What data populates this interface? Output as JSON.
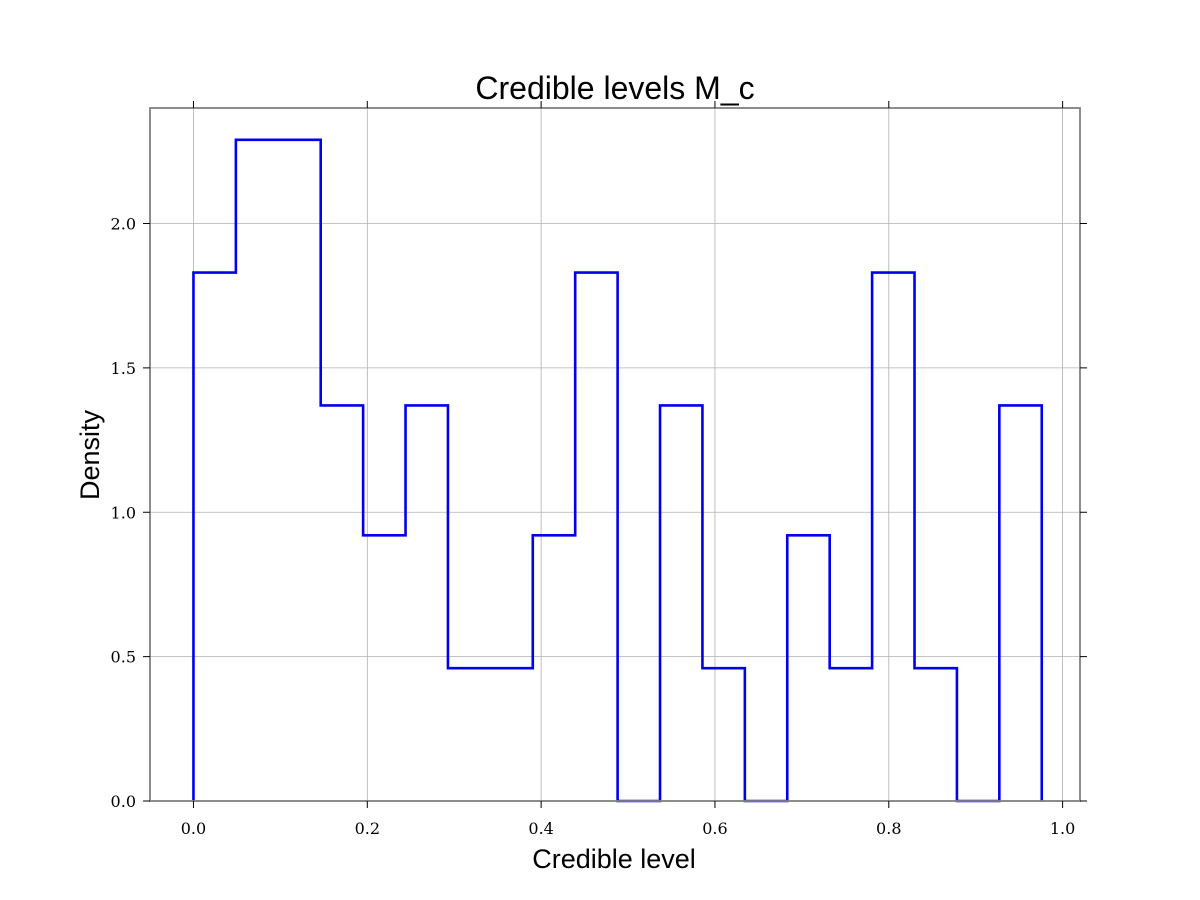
{
  "chart_data": {
    "type": "histogram",
    "title": "Credible levels M_c",
    "xlabel": "Credible level",
    "ylabel": "Density",
    "xlim": [
      -0.05,
      1.02
    ],
    "ylim": [
      0,
      2.4
    ],
    "grid": true,
    "histtype": "step",
    "bin_edges": [
      0.0,
      0.0488,
      0.0976,
      0.1464,
      0.1952,
      0.244,
      0.2928,
      0.3416,
      0.3904,
      0.4392,
      0.488,
      0.5368,
      0.5856,
      0.6344,
      0.6832,
      0.732,
      0.7808,
      0.8296,
      0.8784,
      0.9272,
      0.976
    ],
    "values": [
      1.83,
      2.29,
      2.29,
      1.37,
      0.92,
      1.37,
      0.46,
      0.46,
      0.92,
      1.83,
      0.0,
      1.37,
      0.46,
      0.0,
      0.92,
      0.46,
      1.83,
      0.46,
      0.0,
      1.37
    ],
    "series_color": "#0000ee",
    "x_ticks": [
      0.0,
      0.2,
      0.4,
      0.6,
      0.8,
      1.0
    ],
    "x_tick_labels": [
      "0.0",
      "0.2",
      "0.4",
      "0.6",
      "0.8",
      "1.0"
    ],
    "y_ticks": [
      0.0,
      0.5,
      1.0,
      1.5,
      2.0
    ],
    "y_tick_labels": [
      "0.0",
      "0.5",
      "1.0",
      "1.5",
      "2.0"
    ]
  }
}
